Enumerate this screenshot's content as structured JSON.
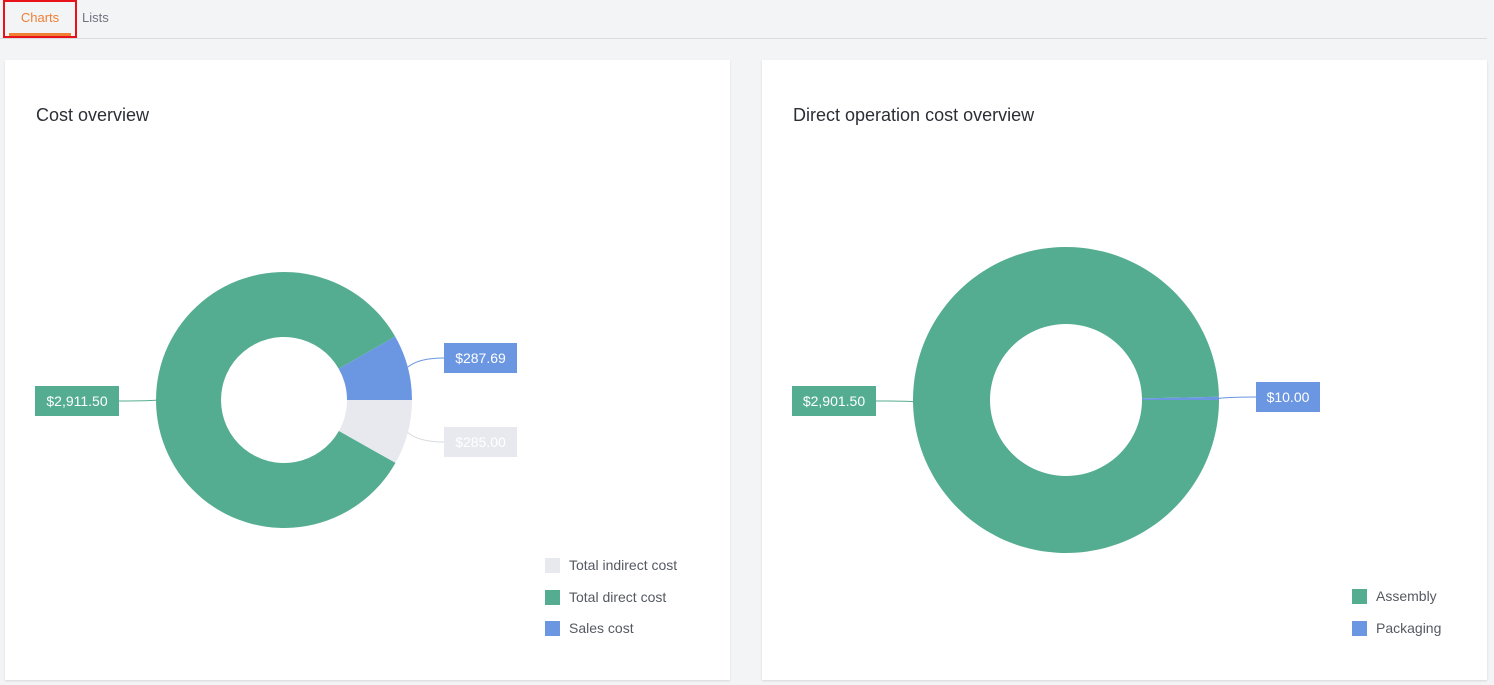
{
  "tabs": [
    {
      "label": "Charts",
      "active": true
    },
    {
      "label": "Lists",
      "active": false
    }
  ],
  "colors": {
    "accent": "#f07f36",
    "green": "#55ad91",
    "blue": "#6a96e2",
    "gray": "#e8e9ee"
  },
  "chart_data": [
    {
      "type": "pie",
      "title": "Cost overview",
      "donut": true,
      "legend_position": "bottom-right",
      "slices": [
        {
          "name": "Total indirect cost",
          "value": 285.0,
          "label": "$285.00",
          "color": "#e8e9ee"
        },
        {
          "name": "Total direct cost",
          "value": 2911.5,
          "label": "$2,911.50",
          "color": "#55ad91"
        },
        {
          "name": "Sales cost",
          "value": 287.69,
          "label": "$287.69",
          "color": "#6a96e2"
        }
      ]
    },
    {
      "type": "pie",
      "title": "Direct operation cost overview",
      "donut": true,
      "legend_position": "bottom-right",
      "slices": [
        {
          "name": "Assembly",
          "value": 2901.5,
          "label": "$2,901.50",
          "color": "#55ad91"
        },
        {
          "name": "Packaging",
          "value": 10.0,
          "label": "$10.00",
          "color": "#6a96e2"
        }
      ]
    }
  ]
}
